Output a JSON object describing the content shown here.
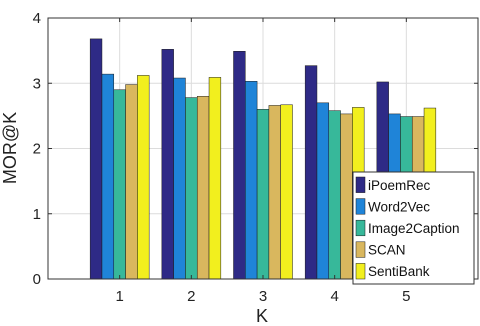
{
  "chart_data": {
    "type": "bar",
    "title": "",
    "xlabel": "K",
    "ylabel": "MOR@K",
    "categories": [
      "1",
      "2",
      "3",
      "4",
      "5"
    ],
    "ylim": [
      0,
      4
    ],
    "yticks": [
      "0",
      "1",
      "2",
      "3",
      "4"
    ],
    "grid": true,
    "legend_position": "bottom-right",
    "series": [
      {
        "name": "iPoemRec",
        "color": "#2e2a86",
        "values": [
          3.68,
          3.52,
          3.49,
          3.27,
          3.02
        ]
      },
      {
        "name": "Word2Vec",
        "color": "#1f84d8",
        "values": [
          3.14,
          3.08,
          3.03,
          2.7,
          2.53
        ]
      },
      {
        "name": "Image2Caption",
        "color": "#37b89a",
        "values": [
          2.9,
          2.78,
          2.6,
          2.58,
          2.49
        ]
      },
      {
        "name": "SCAN",
        "color": "#d9b75e",
        "values": [
          2.98,
          2.8,
          2.66,
          2.53,
          2.49
        ]
      },
      {
        "name": "SentiBank",
        "color": "#f2ef1e",
        "values": [
          3.12,
          3.09,
          2.67,
          2.63,
          2.62
        ]
      }
    ]
  }
}
